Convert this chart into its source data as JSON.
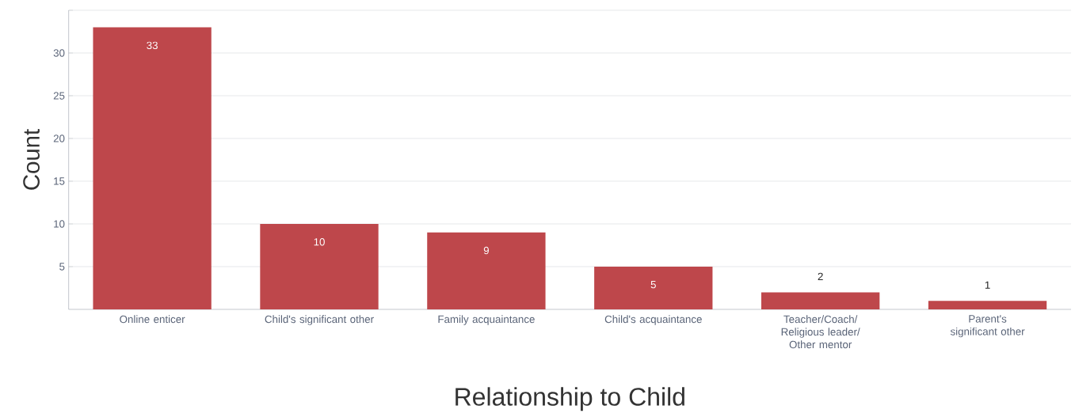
{
  "chart_data": {
    "type": "bar",
    "xlabel": "Relationship to Child",
    "ylabel": "Count",
    "categories": [
      "Online enticer",
      "Child's significant other",
      "Family acquaintance",
      "Child's acquaintance",
      "Teacher/Coach/ Religious leader/ Other mentor",
      "Parent's significant other"
    ],
    "values": [
      33,
      10,
      9,
      5,
      2,
      1
    ],
    "color": "#be474b",
    "ylim": [
      0,
      35
    ],
    "yticks": [
      5,
      10,
      15,
      20,
      25,
      30,
      {
        "value": 35,
        "label": null
      }
    ],
    "grid": "y",
    "data_labels": true
  }
}
